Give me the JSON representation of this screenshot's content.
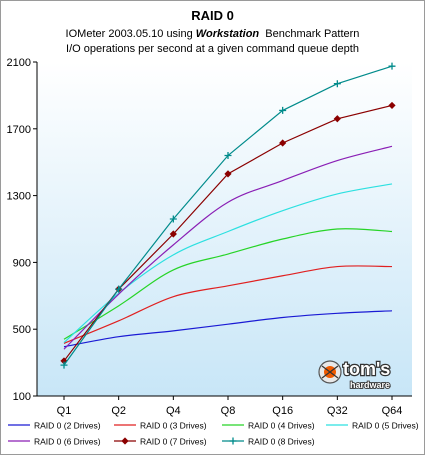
{
  "chart_data": {
    "type": "line",
    "title": "RAID 0",
    "subtitle_pre": "IOMeter 2003.05.10 using ",
    "subtitle_bold": "Workstation",
    "subtitle_post": "  Benchmark Pattern",
    "subtitle2": "I/O operations per second at a given command queue depth",
    "categories": [
      "Q1",
      "Q2",
      "Q4",
      "Q8",
      "Q16",
      "Q32",
      "Q64"
    ],
    "ylim": [
      100,
      2100
    ],
    "yticks": [
      100,
      500,
      900,
      1300,
      1700,
      2100
    ],
    "grid": false,
    "legend_position": "bottom",
    "plot_background": [
      "#ffffff",
      "#c8e6f7"
    ],
    "series": [
      {
        "name": "RAID 0 (2 Drives)",
        "color": "#1a1ad4",
        "marker": "none",
        "values": [
          395,
          455,
          490,
          530,
          570,
          595,
          610
        ]
      },
      {
        "name": "RAID 0 (3 Drives)",
        "color": "#e02020",
        "marker": "none",
        "values": [
          415,
          550,
          695,
          760,
          820,
          875,
          875
        ]
      },
      {
        "name": "RAID 0 (4 Drives)",
        "color": "#27d427",
        "marker": "none",
        "values": [
          440,
          640,
          855,
          950,
          1040,
          1100,
          1085
        ]
      },
      {
        "name": "RAID 0 (5 Drives)",
        "color": "#2ce0e0",
        "marker": "none",
        "values": [
          420,
          715,
          945,
          1085,
          1210,
          1310,
          1370
        ]
      },
      {
        "name": "RAID 0 (6 Drives)",
        "color": "#8a1fb5",
        "marker": "none",
        "values": [
          380,
          710,
          1005,
          1260,
          1390,
          1510,
          1595
        ]
      },
      {
        "name": "RAID 0 (7 Drives)",
        "color": "#8b0000",
        "marker": "diamond",
        "values": [
          310,
          740,
          1070,
          1430,
          1615,
          1760,
          1840
        ]
      },
      {
        "name": "RAID 0 (8 Drives)",
        "color": "#008b8b",
        "marker": "plus",
        "values": [
          285,
          740,
          1160,
          1540,
          1810,
          1970,
          2075
        ]
      }
    ]
  },
  "watermark": {
    "line1": "tom's",
    "line2": "hardware"
  }
}
